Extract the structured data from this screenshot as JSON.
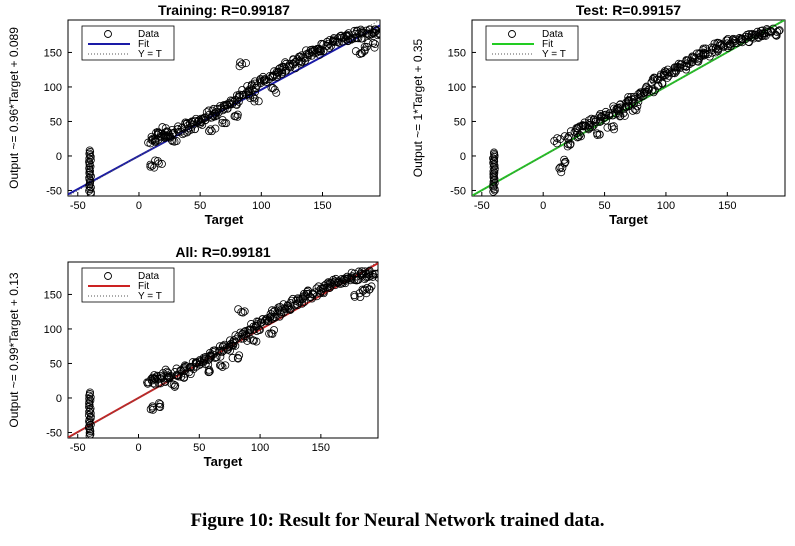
{
  "figure": {
    "caption": "Figure 10: Result for Neural Network trained data."
  },
  "chart_data": [
    {
      "id": "training",
      "type": "scatter",
      "title": "Training: R=0.99187",
      "xlabel": "Target",
      "ylabel": "Output ~= 0.96*Target + 0.089",
      "xlim": [
        -58,
        197
      ],
      "ylim": [
        -58,
        197
      ],
      "xticks": [
        -50,
        0,
        50,
        100,
        150
      ],
      "yticks": [
        -50,
        0,
        50,
        100,
        150
      ],
      "fit": {
        "slope": 0.96,
        "intercept": 0.089,
        "color": "#1a1aa6"
      },
      "legend": {
        "position": "top-left",
        "entries": [
          "Data",
          "Fit",
          "Y = T"
        ]
      },
      "series": [
        {
          "name": "Data",
          "cluster": {
            "x": -40,
            "y_min": -55,
            "y_max": 8
          },
          "points": [
            [
              10,
              22
            ],
            [
              10,
              -15
            ],
            [
              12,
              26
            ],
            [
              14,
              30
            ],
            [
              15,
              22
            ],
            [
              16,
              -10
            ],
            [
              18,
              33
            ],
            [
              20,
              25
            ],
            [
              22,
              38
            ],
            [
              24,
              30
            ],
            [
              25,
              32
            ],
            [
              28,
              20
            ],
            [
              30,
              35
            ],
            [
              32,
              40
            ],
            [
              35,
              32
            ],
            [
              38,
              45
            ],
            [
              40,
              38
            ],
            [
              42,
              48
            ],
            [
              45,
              42
            ],
            [
              48,
              50
            ],
            [
              50,
              48
            ],
            [
              52,
              55
            ],
            [
              55,
              52
            ],
            [
              58,
              62
            ],
            [
              60,
              58
            ],
            [
              62,
              65
            ],
            [
              65,
              60
            ],
            [
              68,
              72
            ],
            [
              70,
              68
            ],
            [
              72,
              75
            ],
            [
              75,
              72
            ],
            [
              78,
              82
            ],
            [
              80,
              78
            ],
            [
              82,
              88
            ],
            [
              85,
              92
            ],
            [
              85,
              132
            ],
            [
              88,
              86
            ],
            [
              90,
              98
            ],
            [
              92,
              95
            ],
            [
              95,
              105
            ],
            [
              98,
              100
            ],
            [
              100,
              108
            ],
            [
              102,
              112
            ],
            [
              105,
              110
            ],
            [
              108,
              118
            ],
            [
              110,
              115
            ],
            [
              112,
              124
            ],
            [
              115,
              120
            ],
            [
              118,
              128
            ],
            [
              120,
              126
            ],
            [
              122,
              132
            ],
            [
              125,
              130
            ],
            [
              128,
              140
            ],
            [
              130,
              136
            ],
            [
              132,
              142
            ],
            [
              135,
              140
            ],
            [
              138,
              150
            ],
            [
              140,
              148
            ],
            [
              142,
              152
            ],
            [
              145,
              150
            ],
            [
              148,
              158
            ],
            [
              150,
              155
            ],
            [
              152,
              162
            ],
            [
              155,
              160
            ],
            [
              158,
              166
            ],
            [
              160,
              164
            ],
            [
              162,
              170
            ],
            [
              165,
              168
            ],
            [
              168,
              172
            ],
            [
              170,
              170
            ],
            [
              172,
              175
            ],
            [
              175,
              172
            ],
            [
              178,
              178
            ],
            [
              180,
              174
            ],
            [
              182,
              180
            ],
            [
              185,
              176
            ],
            [
              188,
              180
            ],
            [
              190,
              178
            ],
            [
              192,
              182
            ],
            [
              195,
              178
            ],
            [
              180,
              150
            ],
            [
              185,
              155
            ],
            [
              190,
              160
            ],
            [
              60,
              38
            ],
            [
              70,
              48
            ],
            [
              80,
              60
            ],
            [
              95,
              82
            ],
            [
              110,
              95
            ]
          ]
        }
      ]
    },
    {
      "id": "test",
      "type": "scatter",
      "title": "Test: R=0.99157",
      "xlabel": "Target",
      "ylabel": "Output ~= 1*Target + 0.35",
      "xlim": [
        -58,
        197
      ],
      "ylim": [
        -58,
        197
      ],
      "xticks": [
        -50,
        0,
        50,
        100,
        150
      ],
      "yticks": [
        -50,
        0,
        50,
        100,
        150
      ],
      "fit": {
        "slope": 1.0,
        "intercept": 0.35,
        "color": "#22cc22"
      },
      "legend": {
        "position": "top-left",
        "entries": [
          "Data",
          "Fit",
          "Y = T"
        ]
      },
      "series": [
        {
          "name": "Data",
          "cluster": {
            "x": -40,
            "y_min": -52,
            "y_max": 5
          },
          "points": [
            [
              12,
              22
            ],
            [
              15,
              -20
            ],
            [
              18,
              -8
            ],
            [
              20,
              28
            ],
            [
              22,
              15
            ],
            [
              25,
              35
            ],
            [
              28,
              30
            ],
            [
              30,
              40
            ],
            [
              32,
              42
            ],
            [
              35,
              45
            ],
            [
              38,
              40
            ],
            [
              40,
              48
            ],
            [
              42,
              52
            ],
            [
              45,
              50
            ],
            [
              48,
              58
            ],
            [
              50,
              55
            ],
            [
              52,
              62
            ],
            [
              55,
              60
            ],
            [
              58,
              68
            ],
            [
              60,
              65
            ],
            [
              62,
              72
            ],
            [
              65,
              70
            ],
            [
              68,
              78
            ],
            [
              70,
              75
            ],
            [
              72,
              85
            ],
            [
              75,
              80
            ],
            [
              78,
              90
            ],
            [
              80,
              88
            ],
            [
              82,
              95
            ],
            [
              85,
              100
            ],
            [
              88,
              96
            ],
            [
              90,
              108
            ],
            [
              92,
              112
            ],
            [
              95,
              104
            ],
            [
              98,
              118
            ],
            [
              100,
              115
            ],
            [
              102,
              122
            ],
            [
              105,
              118
            ],
            [
              108,
              128
            ],
            [
              110,
              125
            ],
            [
              112,
              132
            ],
            [
              115,
              128
            ],
            [
              118,
              138
            ],
            [
              120,
              135
            ],
            [
              122,
              142
            ],
            [
              125,
              140
            ],
            [
              128,
              150
            ],
            [
              130,
              146
            ],
            [
              132,
              152
            ],
            [
              135,
              148
            ],
            [
              138,
              156
            ],
            [
              140,
              154
            ],
            [
              142,
              160
            ],
            [
              145,
              156
            ],
            [
              148,
              164
            ],
            [
              150,
              160
            ],
            [
              152,
              166
            ],
            [
              155,
              162
            ],
            [
              158,
              170
            ],
            [
              160,
              166
            ],
            [
              162,
              172
            ],
            [
              165,
              168
            ],
            [
              168,
              175
            ],
            [
              170,
              172
            ],
            [
              172,
              178
            ],
            [
              175,
              174
            ],
            [
              178,
              180
            ],
            [
              180,
              176
            ],
            [
              182,
              178
            ],
            [
              185,
              180
            ],
            [
              188,
              178
            ],
            [
              190,
              182
            ],
            [
              45,
              30
            ],
            [
              55,
              42
            ],
            [
              65,
              58
            ],
            [
              75,
              68
            ]
          ]
        }
      ]
    },
    {
      "id": "all",
      "type": "scatter",
      "title": "All: R=0.99181",
      "xlabel": "Target",
      "ylabel": "Output ~= 0.99*Target + 0.13",
      "xlim": [
        -58,
        197
      ],
      "ylim": [
        -58,
        197
      ],
      "xticks": [
        -50,
        0,
        50,
        100,
        150
      ],
      "yticks": [
        -50,
        0,
        50,
        100,
        150
      ],
      "fit": {
        "slope": 0.99,
        "intercept": 0.13,
        "color": "#cc2222"
      },
      "legend": {
        "position": "top-left",
        "entries": [
          "Data",
          "Fit",
          "Y = T"
        ]
      },
      "series": [
        {
          "name": "Data",
          "cluster": {
            "x": -40,
            "y_min": -55,
            "y_max": 8
          },
          "points": [
            [
              10,
              22
            ],
            [
              10,
              -15
            ],
            [
              12,
              26
            ],
            [
              14,
              30
            ],
            [
              15,
              22
            ],
            [
              16,
              -10
            ],
            [
              18,
              33
            ],
            [
              20,
              25
            ],
            [
              22,
              38
            ],
            [
              24,
              30
            ],
            [
              25,
              32
            ],
            [
              28,
              20
            ],
            [
              30,
              35
            ],
            [
              32,
              40
            ],
            [
              35,
              32
            ],
            [
              38,
              45
            ],
            [
              40,
              38
            ],
            [
              42,
              48
            ],
            [
              45,
              42
            ],
            [
              48,
              50
            ],
            [
              50,
              48
            ],
            [
              52,
              55
            ],
            [
              55,
              52
            ],
            [
              58,
              62
            ],
            [
              60,
              58
            ],
            [
              62,
              65
            ],
            [
              65,
              60
            ],
            [
              68,
              72
            ],
            [
              70,
              68
            ],
            [
              72,
              75
            ],
            [
              75,
              72
            ],
            [
              78,
              82
            ],
            [
              80,
              78
            ],
            [
              82,
              88
            ],
            [
              85,
              92
            ],
            [
              85,
              125
            ],
            [
              88,
              86
            ],
            [
              90,
              98
            ],
            [
              92,
              95
            ],
            [
              95,
              105
            ],
            [
              98,
              100
            ],
            [
              100,
              108
            ],
            [
              102,
              112
            ],
            [
              105,
              110
            ],
            [
              108,
              118
            ],
            [
              110,
              115
            ],
            [
              112,
              124
            ],
            [
              115,
              120
            ],
            [
              118,
              128
            ],
            [
              120,
              126
            ],
            [
              122,
              132
            ],
            [
              125,
              130
            ],
            [
              128,
              140
            ],
            [
              130,
              136
            ],
            [
              132,
              142
            ],
            [
              135,
              140
            ],
            [
              138,
              150
            ],
            [
              140,
              148
            ],
            [
              142,
              152
            ],
            [
              145,
              150
            ],
            [
              148,
              158
            ],
            [
              150,
              155
            ],
            [
              152,
              162
            ],
            [
              155,
              160
            ],
            [
              158,
              166
            ],
            [
              160,
              164
            ],
            [
              162,
              170
            ],
            [
              165,
              168
            ],
            [
              168,
              172
            ],
            [
              170,
              170
            ],
            [
              172,
              175
            ],
            [
              175,
              172
            ],
            [
              178,
              178
            ],
            [
              180,
              174
            ],
            [
              182,
              180
            ],
            [
              185,
              176
            ],
            [
              188,
              180
            ],
            [
              190,
              178
            ],
            [
              192,
              182
            ],
            [
              195,
              178
            ],
            [
              180,
              150
            ],
            [
              185,
              155
            ],
            [
              190,
              160
            ],
            [
              60,
              38
            ],
            [
              70,
              48
            ],
            [
              80,
              60
            ],
            [
              95,
              82
            ],
            [
              110,
              95
            ]
          ]
        }
      ]
    }
  ]
}
